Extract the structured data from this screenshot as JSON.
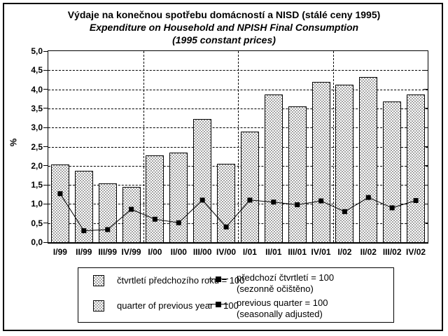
{
  "page": {
    "title_line1": "Výdaje na konečnou spotřebu domácností a NISD (stálé ceny 1995)",
    "title_line2": "Expenditure on Household and NPISH Final Consumption",
    "title_line3": "(1995 constant prices)"
  },
  "chart_data": {
    "type": "bar",
    "title": "Výdaje na konečnou spotřebu domácností a NISD (stálé ceny 1995) / Expenditure on Household and NPISH Final Consumption (1995 constant prices)",
    "categories": [
      "I/99",
      "II/99",
      "III/99",
      "IV/99",
      "I/00",
      "II/00",
      "III/00",
      "IV/00",
      "I/01",
      "II/01",
      "III/01",
      "IV/01",
      "I/02",
      "II/02",
      "III/02",
      "IV/02"
    ],
    "series": [
      {
        "name": "čtvrtletí předchozího roku = 100 (quarter of previous year = 100)",
        "type": "bar",
        "values": [
          2.04,
          1.87,
          1.54,
          1.45,
          2.28,
          2.35,
          3.23,
          2.05,
          2.9,
          3.87,
          3.55,
          4.2,
          4.12,
          4.33,
          3.69,
          3.86
        ]
      },
      {
        "name": "předchozí čtvrtletí = 100, sezonně očištěno (previous quarter = 100, seasonally adjusted)",
        "type": "line",
        "values": [
          1.27,
          0.3,
          0.33,
          0.86,
          0.6,
          0.51,
          1.1,
          0.4,
          1.1,
          1.05,
          0.98,
          1.08,
          0.8,
          1.17,
          0.9,
          1.09
        ]
      }
    ],
    "xlabel": "",
    "ylabel": "%",
    "ylim": [
      0,
      5
    ],
    "ytick_step": 0.5,
    "ytick_labels": [
      "0,0",
      "0,5",
      "1,0",
      "1,5",
      "2,0",
      "2,5",
      "3,0",
      "3,5",
      "4,0",
      "4,5",
      "5,0"
    ],
    "grid": "horizontal dashed gridlines; dashed vertical separators between years",
    "year_separators_after_index": [
      3,
      7,
      11
    ],
    "legend_position": "bottom"
  },
  "legend": {
    "bar_label_cs": "čtvrtletí předchozího roku = 100",
    "bar_label_en": "quarter of previous year = 100",
    "line_label_cs_line1": "předchozí čtvrtletí = 100",
    "line_label_cs_line2": "(sezonně očištěno)",
    "line_label_en_line1": "previous quarter = 100",
    "line_label_en_line2": "(seasonally adjusted)"
  },
  "colors": {
    "background": "#ffffff",
    "frame_border": "#000000",
    "bar_pattern_gray": "#a6a6a6",
    "bar_border": "#000000",
    "line_series": "#000000",
    "text": "#000000"
  }
}
